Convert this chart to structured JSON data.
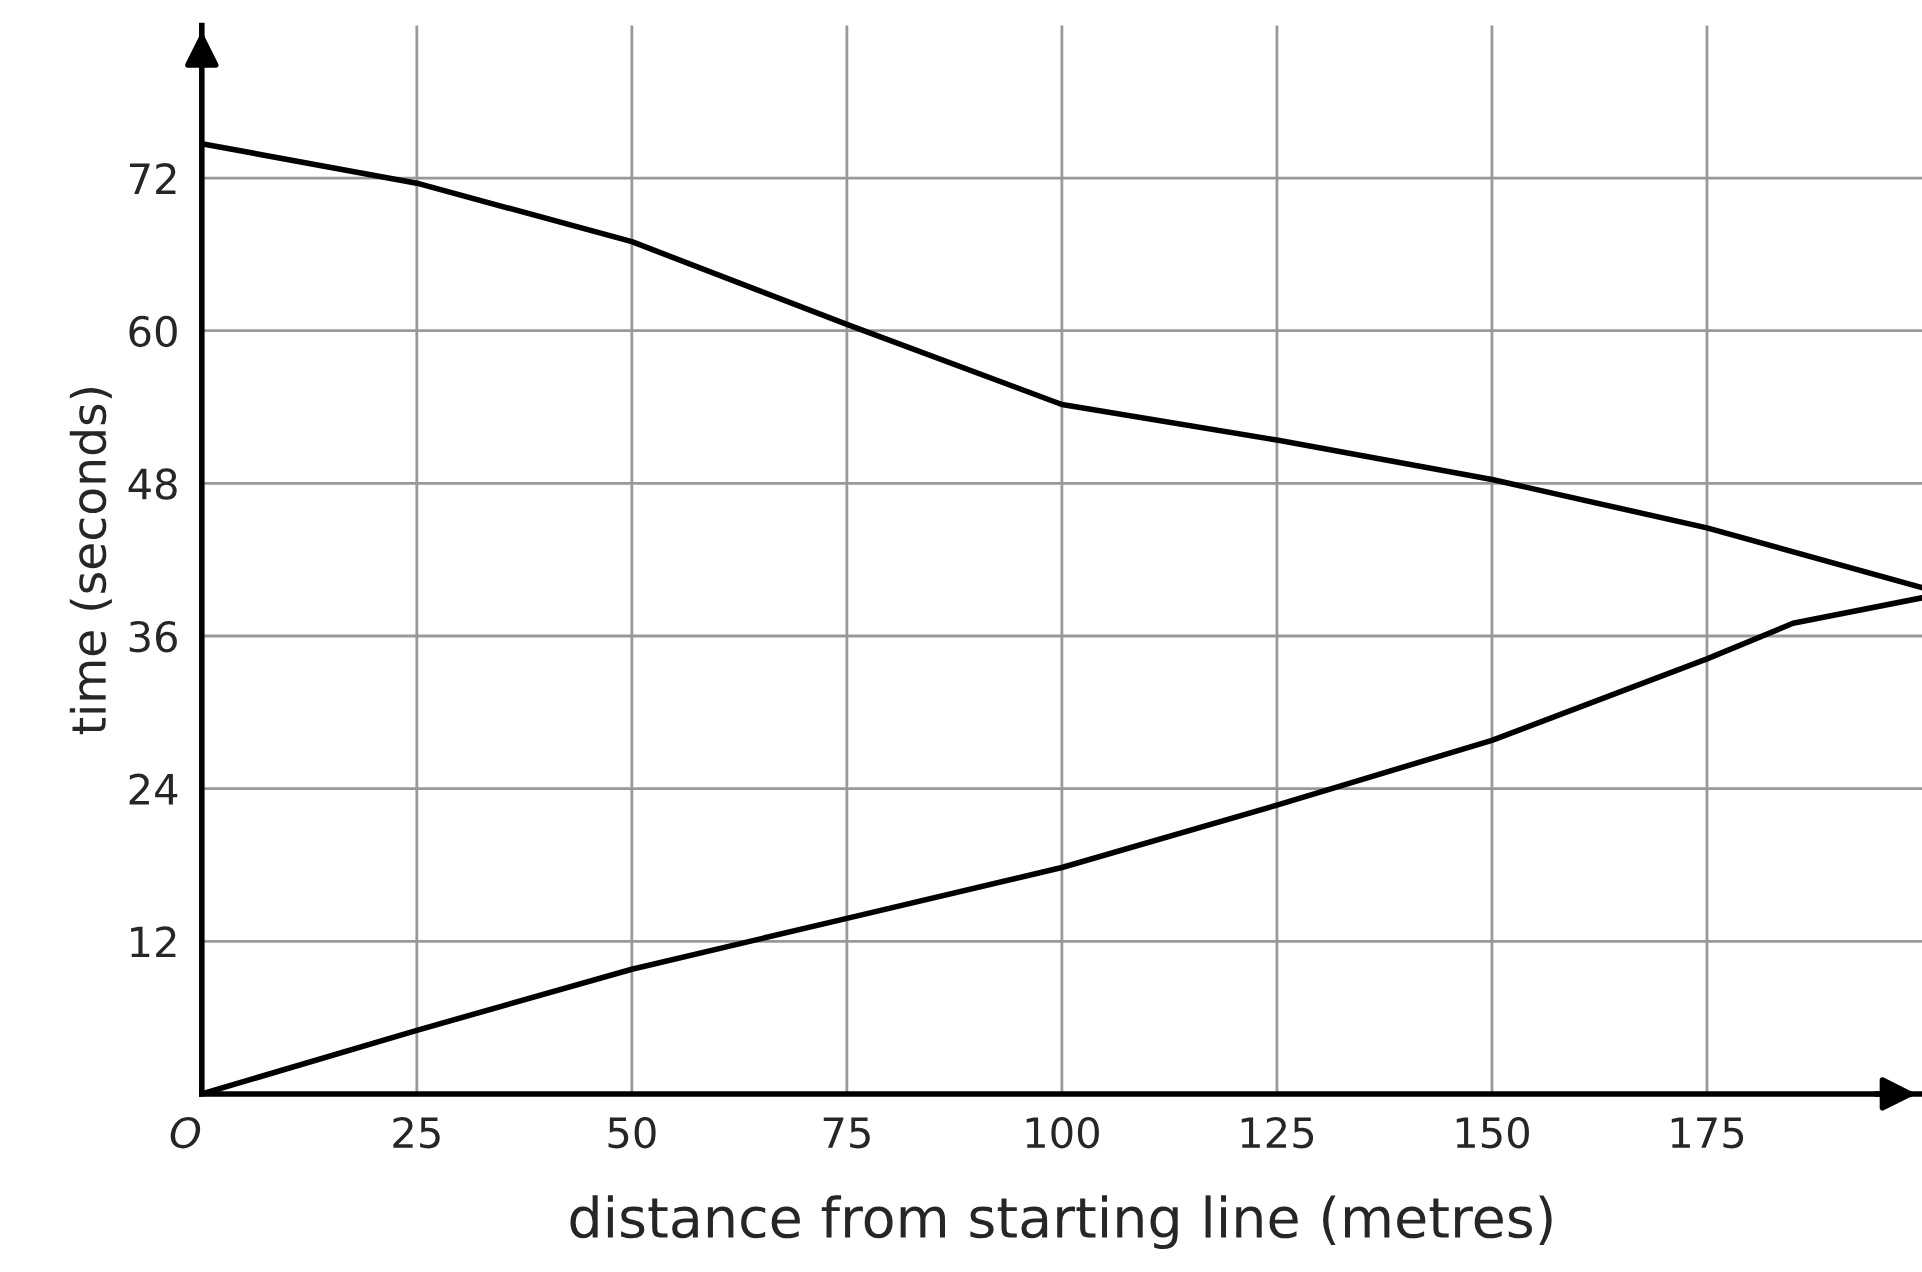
{
  "chart_data": {
    "type": "line",
    "xlabel": "distance from starting line (metres)",
    "ylabel": "time (seconds)",
    "series": [
      {
        "color": "#000000",
        "x": [
          0,
          25,
          50,
          75,
          100,
          125,
          150,
          175,
          200
        ],
        "values": [
          74.7,
          71.6,
          67,
          60.5,
          54.2,
          51.4,
          48.3,
          44.5,
          39.8
        ]
      },
      {
        "color": "#000000",
        "x": [
          0,
          25,
          50,
          75,
          100,
          125,
          150,
          175,
          185,
          200
        ],
        "values": [
          0,
          5,
          9.8,
          13.8,
          17.8,
          22.7,
          27.8,
          34.2,
          37,
          39
        ]
      }
    ],
    "xlim": [
      0,
      200
    ],
    "ylim": [
      0,
      84
    ],
    "xticks": [
      {
        "value": 0,
        "label": "O"
      },
      25,
      50,
      75,
      100,
      125,
      150,
      175
    ],
    "yticks": [
      {
        "value": 0,
        "label": null
      },
      12,
      24,
      36,
      48,
      60,
      72
    ],
    "grid": true,
    "marker": "none",
    "line_style": "solid"
  }
}
